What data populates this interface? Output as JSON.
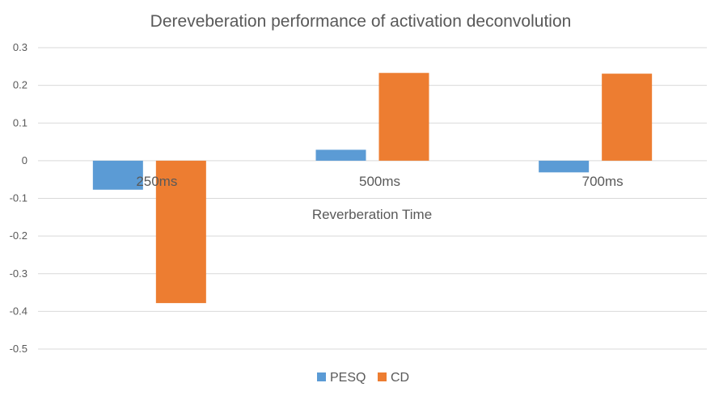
{
  "chart_data": {
    "type": "bar",
    "title": "Dereveberation performance of activation deconvolution",
    "xlabel": "Reverberation Time",
    "ylabel": "",
    "categories": [
      "250ms",
      "500ms",
      "700ms"
    ],
    "series": [
      {
        "name": "PESQ",
        "color": "#5b9bd5",
        "values": [
          -0.077,
          0.029,
          -0.031
        ]
      },
      {
        "name": "CD",
        "color": "#ed7d31",
        "values": [
          -0.378,
          0.233,
          0.231
        ]
      }
    ],
    "ylim": [
      -0.5,
      0.3
    ],
    "yticks": [
      0.3,
      0.2,
      0.1,
      0,
      -0.1,
      -0.2,
      -0.3,
      -0.4,
      -0.5
    ],
    "ytick_labels": [
      "0.3",
      "0.2",
      "0.1",
      "0",
      "-0.1",
      "-0.2",
      "-0.3",
      "-0.4",
      "-0.5"
    ],
    "grid": true,
    "legend_position": "bottom"
  }
}
